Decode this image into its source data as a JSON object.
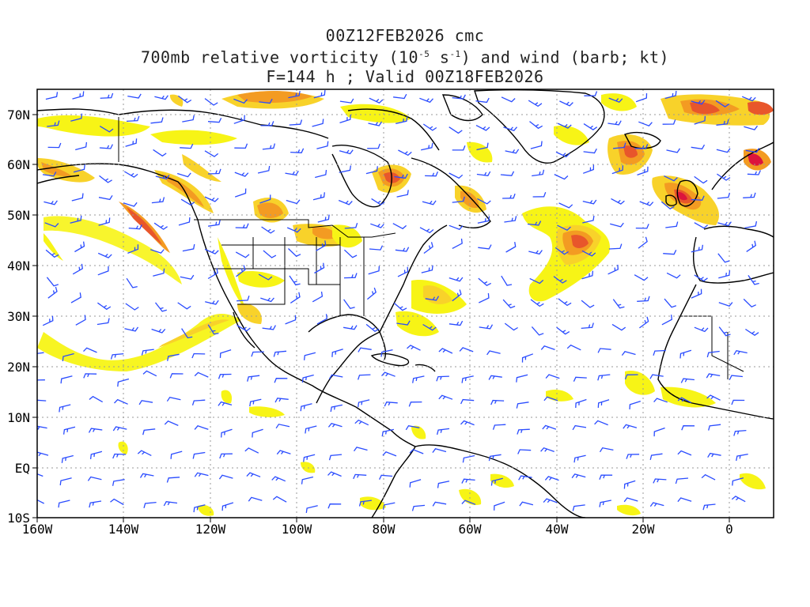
{
  "title": {
    "line1": "00Z12FEB2026 cmc",
    "line2_before": "700mb relative vorticity (10",
    "line2_exp1": "-5",
    "line2_mid": " s",
    "line2_exp2": "-1",
    "line2_after": ") and wind (barb; kt)",
    "line3": "F=144 h ; Valid 00Z18FEB2026"
  },
  "axes": {
    "lat_labels": [
      "70N",
      "60N",
      "50N",
      "40N",
      "30N",
      "20N",
      "10N",
      "EQ",
      "10S"
    ],
    "lon_labels": [
      "160W",
      "140W",
      "120W",
      "100W",
      "80W",
      "60W",
      "40W",
      "20W",
      "0"
    ]
  },
  "colors": {
    "vort_low": "#f7f416",
    "vort_mid": "#f8d22a",
    "vort_high": "#f39b22",
    "vort_higher": "#e8562b",
    "vort_max": "#dc143c",
    "barb": "#2a4cff",
    "coast": "#000000",
    "grid": "#9a9a9a"
  }
}
